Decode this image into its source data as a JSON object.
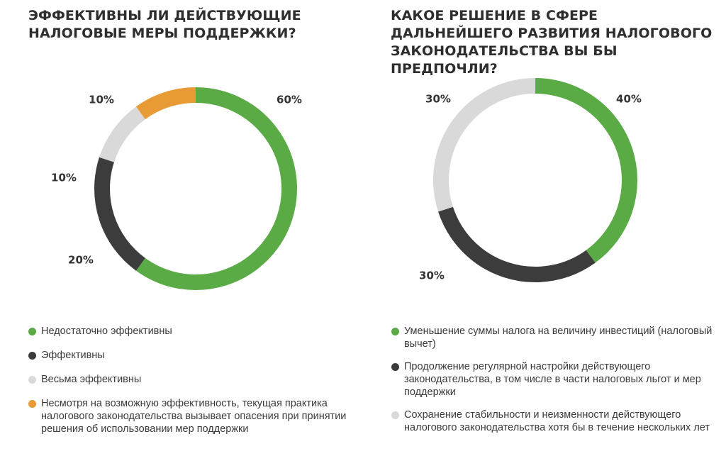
{
  "colors": {
    "green": "#5aaa46",
    "dark": "#3c3c3c",
    "light": "#d9d9d9",
    "orange": "#e89a35"
  },
  "chart_data": [
    {
      "type": "pie",
      "style": "donut",
      "title": "ЭФФЕКТИВНЫ ЛИ ДЕЙСТВУЮЩИЕ НАЛОГОВЫЕ МЕРЫ ПОДДЕРЖКИ?",
      "legend_position": "bottom",
      "slices": [
        {
          "label": "Недостаточно эффективны",
          "value": 60,
          "display": "60%",
          "color": "#5aaa46"
        },
        {
          "label": "Эффективны",
          "value": 20,
          "display": "20%",
          "color": "#3c3c3c"
        },
        {
          "label": "Весьма эффективны",
          "value": 10,
          "display": "10%",
          "color": "#d9d9d9"
        },
        {
          "label": "Несмотря на возможную эффективность, текущая практика налогового законодательства вызывает опасения при принятии решения об использовании мер поддержки",
          "value": 10,
          "display": "10%",
          "color": "#e89a35"
        }
      ]
    },
    {
      "type": "pie",
      "style": "donut",
      "title": "КАКОЕ РЕШЕНИЕ В СФЕРЕ ДАЛЬНЕЙШЕГО РАЗВИТИЯ НАЛОГОВОГО ЗАКОНОДАТЕЛЬСТВА ВЫ БЫ ПРЕДПОЧЛИ?",
      "legend_position": "bottom",
      "slices": [
        {
          "label": "Уменьшение суммы налога на величину инвестиций (налоговый вычет)",
          "value": 40,
          "display": "40%",
          "color": "#5aaa46"
        },
        {
          "label": "Продолжение регулярной настройки действующего законодательства, в том числе в части налоговых льгот и мер поддержки",
          "value": 30,
          "display": "30%",
          "color": "#3c3c3c"
        },
        {
          "label": "Сохранение стабильности и неизменности действующего налогового законодательства хотя бы в течение нескольких лет",
          "value": 30,
          "display": "30%",
          "color": "#d9d9d9"
        }
      ]
    }
  ]
}
